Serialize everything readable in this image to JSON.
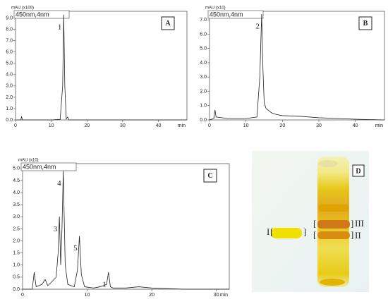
{
  "chart_data": [
    {
      "type": "line",
      "panel_label": "A",
      "y_unit": "mAU (x100)",
      "legend_box": "450nm,4nm",
      "x_unit": "min",
      "xlim": [
        0,
        48
      ],
      "ylim": [
        0,
        9.6
      ],
      "xticks": [
        0,
        10,
        20,
        30,
        40
      ],
      "yticks": [
        {
          "value": 0,
          "label": "0.0"
        },
        {
          "value": 1,
          "label": "1.0"
        },
        {
          "value": 2,
          "label": "2.0"
        },
        {
          "value": 3,
          "label": "3.0"
        },
        {
          "value": 4,
          "label": "4.0"
        },
        {
          "value": 5,
          "label": "5.0"
        },
        {
          "value": 6,
          "label": "6.0"
        },
        {
          "value": 7,
          "label": "7.0"
        },
        {
          "value": 8,
          "label": "8.0"
        },
        {
          "value": 9,
          "label": "9.0"
        }
      ],
      "color": "#222222",
      "x": [
        0,
        1.5,
        1.7,
        1.9,
        5,
        10,
        12.5,
        13.2,
        13.5,
        13.8,
        14.2,
        14.6,
        15,
        20,
        30,
        40,
        48
      ],
      "values": [
        0,
        0,
        0.3,
        0,
        0,
        0,
        0.05,
        3,
        9.3,
        3,
        0.1,
        0.25,
        0,
        0,
        0,
        0,
        0
      ],
      "annotations": [
        {
          "text": "1",
          "x": 13.5,
          "y": 9.3
        }
      ]
    },
    {
      "type": "line",
      "panel_label": "B",
      "y_unit": "mAU (x10)",
      "legend_box": "450nm,4nm",
      "x_unit": "min",
      "xlim": [
        0,
        48
      ],
      "ylim": [
        0,
        7.6
      ],
      "xticks": [
        0,
        10,
        20,
        30,
        40
      ],
      "yticks": [
        {
          "value": 0,
          "label": "0.0"
        },
        {
          "value": 1,
          "label": "1.0"
        },
        {
          "value": 2,
          "label": "2.0"
        },
        {
          "value": 3,
          "label": "3.0"
        },
        {
          "value": 4,
          "label": "4.0"
        },
        {
          "value": 5,
          "label": "5.0"
        },
        {
          "value": 6,
          "label": "6.0"
        },
        {
          "value": 7,
          "label": "7.0"
        }
      ],
      "color": "#222222",
      "x": [
        0,
        1.2,
        1.5,
        1.8,
        5,
        10,
        13,
        13.8,
        14.3,
        14.6,
        15,
        15.5,
        16,
        16.5,
        17,
        18,
        20,
        25,
        30,
        40,
        48
      ],
      "values": [
        0,
        0.1,
        0.7,
        0.2,
        0.1,
        0.1,
        0.2,
        3,
        7.4,
        4,
        1.2,
        0.8,
        0.7,
        0.6,
        0.5,
        0.4,
        0.3,
        0.25,
        0.15,
        0.05,
        0
      ],
      "annotations": [
        {
          "text": "2",
          "x": 14.3,
          "y": 7.4
        }
      ]
    },
    {
      "type": "line",
      "panel_label": "C",
      "y_unit": "mAU (x10)",
      "legend_box": "450nm,4nm",
      "x_unit": "min",
      "xlim": [
        0,
        32
      ],
      "ylim": [
        0,
        5.2
      ],
      "xticks": [
        0,
        10,
        20,
        30
      ],
      "yticks": [
        {
          "value": 0,
          "label": "0.0"
        },
        0.5,
        {
          "value": 1,
          "label": "1.0"
        },
        1.5,
        {
          "value": 2,
          "label": "2.0"
        },
        2.5,
        {
          "value": 3,
          "label": "3.0"
        },
        3.5,
        {
          "value": 4,
          "label": "4.0"
        },
        4.5,
        {
          "value": 5,
          "label": "5.0"
        }
      ],
      "color": "#222222",
      "x": [
        0,
        1.5,
        1.8,
        2.1,
        3,
        3.5,
        3.9,
        4.5,
        5.2,
        5.5,
        5.7,
        5.9,
        6.1,
        6.3,
        6.6,
        7,
        8,
        8.5,
        8.8,
        9.1,
        9.6,
        11,
        12,
        13,
        13.3,
        13.6,
        14,
        16,
        18,
        20,
        25,
        32
      ],
      "values": [
        0,
        0,
        0.7,
        0.1,
        0.2,
        0.4,
        0.15,
        0.3,
        0.5,
        1.5,
        3.0,
        1.0,
        2.5,
        4.9,
        1.0,
        0.2,
        0.1,
        0.8,
        2.2,
        0.6,
        0.1,
        0.05,
        0.1,
        0.2,
        0.7,
        0.1,
        0.05,
        0.05,
        0.1,
        0.05,
        0,
        0
      ],
      "annotations": [
        {
          "text": "3",
          "x": 5.7,
          "y": 3.0
        },
        {
          "text": "4",
          "x": 6.3,
          "y": 4.9
        },
        {
          "text": "5",
          "x": 8.8,
          "y": 2.2
        },
        {
          "text": "1",
          "x": 13.3,
          "y": 0.7
        }
      ]
    }
  ],
  "tlc_plate": {
    "panel_label": "D",
    "bands": [
      "I",
      "II",
      "III"
    ]
  }
}
